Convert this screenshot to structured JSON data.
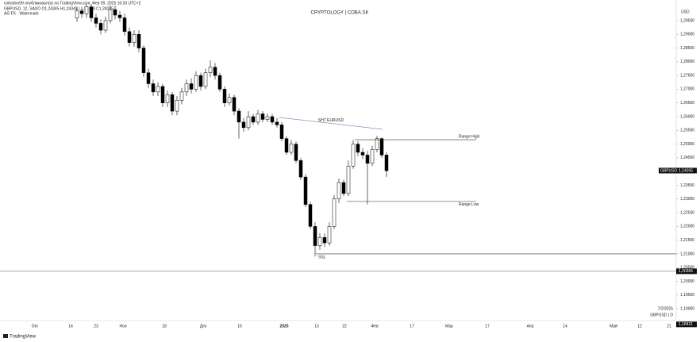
{
  "header": {
    "line1": "cobadoo99 опубликовал(а) на TradingView.com, Фев 09, 2025 16:33 UTC+2",
    "line2": "GBPUSD, 12, SAXO  O1,24345 H1,24345 L1,23799 C1,24035",
    "line3": "AG FX · Watermark",
    "currency": "USD",
    "date_stamp": "7/2/2025",
    "symbol_stamp": "GBPUSD | D",
    "brand": "TradingView"
  },
  "chart_data": {
    "type": "candlestick",
    "title": "CRYPTOLOGY | COBA.SK",
    "ylim": [
      1.1857,
      1.3025
    ],
    "yticks": [
      {
        "value": 1.19,
        "label": "1,19000"
      },
      {
        "value": 1.195,
        "label": "1,19500"
      },
      {
        "value": 1.2,
        "label": "1,20000"
      },
      {
        "value": 1.205,
        "label": "1,20500"
      },
      {
        "value": 1.21,
        "label": "1,21000"
      },
      {
        "value": 1.215,
        "label": "1,21500"
      },
      {
        "value": 1.22,
        "label": "1,22000"
      },
      {
        "value": 1.225,
        "label": "1,22500"
      },
      {
        "value": 1.23,
        "label": "1,23000"
      },
      {
        "value": 1.235,
        "label": "1,23500"
      },
      {
        "value": 1.245,
        "label": "1,24500"
      },
      {
        "value": 1.25,
        "label": "1,25000"
      },
      {
        "value": 1.255,
        "label": "1,25500"
      },
      {
        "value": 1.26,
        "label": "1,26000"
      },
      {
        "value": 1.265,
        "label": "1,26500"
      },
      {
        "value": 1.27,
        "label": "1,27000"
      },
      {
        "value": 1.275,
        "label": "1,27500"
      },
      {
        "value": 1.28,
        "label": "1,28000"
      },
      {
        "value": 1.285,
        "label": "1,28500"
      },
      {
        "value": 1.29,
        "label": "1,29000"
      },
      {
        "value": 1.295,
        "label": "1,29500"
      }
    ],
    "x_axis_labels": [
      "Окт",
      "14",
      "23",
      "Ноя",
      "18",
      "Дек",
      "16",
      "2025",
      "13",
      "22",
      "Фев",
      "17",
      "Мар",
      "17",
      "Апр",
      "14",
      "Май",
      "12",
      "21"
    ],
    "open": [
      1.296,
      1.2985,
      1.2975,
      1.3,
      1.296,
      1.294,
      1.2915,
      1.295,
      1.299,
      1.297,
      1.296,
      1.291,
      1.287,
      1.29,
      1.285,
      1.276,
      1.272,
      1.269,
      1.271,
      1.265,
      1.268,
      1.262,
      1.266,
      1.269,
      1.272,
      1.27,
      1.275,
      1.271,
      1.276,
      1.278,
      1.275,
      1.27,
      1.265,
      1.267,
      1.262,
      1.258,
      1.256,
      1.26,
      1.258,
      1.261,
      1.259,
      1.26,
      1.258,
      1.257,
      1.252,
      1.247,
      1.25,
      1.244,
      1.238,
      1.228,
      1.22,
      1.213,
      1.216,
      1.214,
      1.22,
      1.23,
      1.236,
      1.232,
      1.242,
      1.25,
      1.247,
      1.246,
      1.243,
      1.248,
      1.252,
      1.246
    ],
    "high": [
      1.3,
      1.2995,
      1.301,
      1.301,
      1.2975,
      1.2955,
      1.2965,
      1.3005,
      1.3005,
      1.2985,
      1.2975,
      1.2925,
      1.2915,
      1.2915,
      1.286,
      1.2775,
      1.2735,
      1.2725,
      1.272,
      1.2695,
      1.269,
      1.2675,
      1.2705,
      1.2735,
      1.274,
      1.2765,
      1.276,
      1.2775,
      1.2805,
      1.2795,
      1.276,
      1.271,
      1.2685,
      1.268,
      1.263,
      1.2595,
      1.262,
      1.261,
      1.2625,
      1.262,
      1.2612,
      1.261,
      1.2595,
      1.258,
      1.253,
      1.2515,
      1.251,
      1.245,
      1.239,
      1.229,
      1.2215,
      1.2175,
      1.2175,
      1.2215,
      1.2315,
      1.2375,
      1.237,
      1.244,
      1.2515,
      1.251,
      1.2485,
      1.2475,
      1.2495,
      1.253,
      1.2525,
      1.247
    ],
    "low": [
      1.2945,
      1.296,
      1.296,
      1.2945,
      1.2925,
      1.29,
      1.2905,
      1.294,
      1.2955,
      1.2945,
      1.2895,
      1.2855,
      1.2855,
      1.2835,
      1.2745,
      1.2705,
      1.2675,
      1.2675,
      1.2635,
      1.2635,
      1.2605,
      1.2605,
      1.2645,
      1.2675,
      1.2685,
      1.269,
      1.2695,
      1.27,
      1.2745,
      1.2735,
      1.269,
      1.2635,
      1.264,
      1.2605,
      1.252,
      1.2545,
      1.255,
      1.257,
      1.257,
      1.258,
      1.258,
      1.257,
      1.256,
      1.251,
      1.246,
      1.246,
      1.243,
      1.237,
      1.227,
      1.219,
      1.209,
      1.2115,
      1.2125,
      1.213,
      1.219,
      1.2285,
      1.231,
      1.231,
      1.241,
      1.2455,
      1.2445,
      1.228,
      1.242,
      1.247,
      1.245,
      1.238
    ],
    "close": [
      1.2985,
      1.2975,
      1.3,
      1.296,
      1.294,
      1.2915,
      1.295,
      1.299,
      1.297,
      1.296,
      1.291,
      1.287,
      1.29,
      1.285,
      1.276,
      1.272,
      1.269,
      1.271,
      1.265,
      1.268,
      1.262,
      1.266,
      1.269,
      1.272,
      1.27,
      1.275,
      1.271,
      1.276,
      1.278,
      1.275,
      1.27,
      1.265,
      1.267,
      1.262,
      1.258,
      1.256,
      1.26,
      1.258,
      1.261,
      1.259,
      1.26,
      1.258,
      1.257,
      1.252,
      1.247,
      1.25,
      1.244,
      1.238,
      1.228,
      1.22,
      1.213,
      1.216,
      1.214,
      1.22,
      1.23,
      1.236,
      1.232,
      1.242,
      1.25,
      1.247,
      1.246,
      1.243,
      1.248,
      1.252,
      1.246,
      1.2403
    ],
    "up_color": "#ffffff",
    "down_color": "#000000",
    "annotations": {
      "sh7": {
        "label": "SH7 EURUSD",
        "values": [
          1.2597,
          1.2554
        ]
      },
      "range_high": {
        "label": "Range High",
        "value": 1.2516
      },
      "range_low": {
        "label": "Range Low",
        "value": 1.2291
      },
      "ssl": {
        "label": "SSL",
        "value": 1.21
      }
    },
    "price_boxes": [
      {
        "name": "GBPUSD",
        "value": 1.24035,
        "value_label": "1,24035"
      },
      {
        "value": 1.20366,
        "value_label": "1,20366"
      },
      {
        "value": 1.18431,
        "value_label": "1,18431"
      }
    ]
  }
}
